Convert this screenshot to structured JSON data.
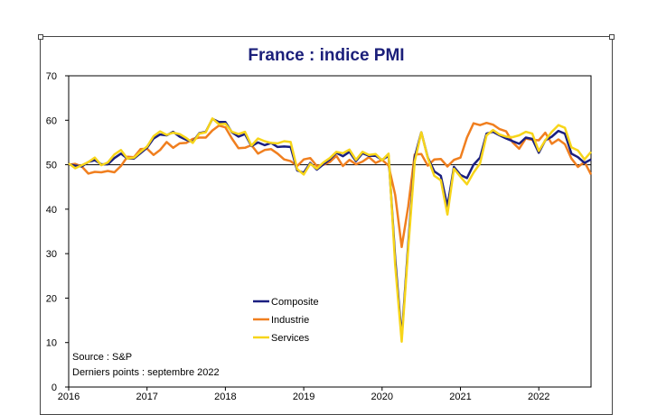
{
  "chart_data": {
    "type": "line",
    "title": "France : indice PMI",
    "xlabel": "",
    "ylabel": "",
    "ylim": [
      0,
      70
    ],
    "yticks": [
      0,
      10,
      20,
      30,
      40,
      50,
      60,
      70
    ],
    "xlim": [
      "2016-01",
      "2022-09"
    ],
    "xticks": [
      "2016",
      "2017",
      "2018",
      "2019",
      "2020",
      "2021",
      "2022"
    ],
    "reference_line": 50,
    "grid": false,
    "legend_position": "bottom-center",
    "source_lines": [
      "Source : S&P",
      "Derniers points : septembre 2022"
    ],
    "x": [
      "2016-01",
      "2016-02",
      "2016-03",
      "2016-04",
      "2016-05",
      "2016-06",
      "2016-07",
      "2016-08",
      "2016-09",
      "2016-10",
      "2016-11",
      "2016-12",
      "2017-01",
      "2017-02",
      "2017-03",
      "2017-04",
      "2017-05",
      "2017-06",
      "2017-07",
      "2017-08",
      "2017-09",
      "2017-10",
      "2017-11",
      "2017-12",
      "2018-01",
      "2018-02",
      "2018-03",
      "2018-04",
      "2018-05",
      "2018-06",
      "2018-07",
      "2018-08",
      "2018-09",
      "2018-10",
      "2018-11",
      "2018-12",
      "2019-01",
      "2019-02",
      "2019-03",
      "2019-04",
      "2019-05",
      "2019-06",
      "2019-07",
      "2019-08",
      "2019-09",
      "2019-10",
      "2019-11",
      "2019-12",
      "2020-01",
      "2020-02",
      "2020-03",
      "2020-04",
      "2020-05",
      "2020-06",
      "2020-07",
      "2020-08",
      "2020-09",
      "2020-10",
      "2020-11",
      "2020-12",
      "2021-01",
      "2021-02",
      "2021-03",
      "2021-04",
      "2021-05",
      "2021-06",
      "2021-07",
      "2021-08",
      "2021-09",
      "2021-10",
      "2021-11",
      "2021-12",
      "2022-01",
      "2022-02",
      "2022-03",
      "2022-04",
      "2022-05",
      "2022-06",
      "2022-07",
      "2022-08",
      "2022-09"
    ],
    "series": [
      {
        "name": "Composite",
        "color": "#1a1f80",
        "values": [
          50.1,
          49.8,
          49.6,
          50.6,
          51.0,
          50.1,
          50.1,
          51.5,
          52.5,
          51.4,
          51.4,
          52.6,
          53.8,
          55.9,
          56.8,
          56.6,
          57.4,
          56.3,
          55.6,
          55.1,
          57.1,
          57.4,
          60.3,
          59.6,
          59.6,
          57.3,
          56.3,
          56.9,
          54.2,
          55.0,
          54.4,
          54.9,
          54.0,
          54.1,
          54.0,
          48.7,
          48.2,
          50.4,
          48.9,
          50.1,
          51.2,
          52.7,
          51.9,
          52.9,
          50.8,
          52.6,
          52.0,
          52.0,
          51.1,
          52.0,
          28.9,
          11.1,
          32.1,
          51.7,
          57.3,
          51.6,
          48.5,
          47.5,
          40.6,
          49.5,
          47.7,
          47.0,
          50.0,
          51.6,
          57.0,
          57.4,
          56.6,
          55.9,
          55.3,
          54.7,
          56.1,
          55.8,
          52.7,
          55.5,
          56.3,
          57.6,
          57.0,
          52.5,
          51.7,
          50.4,
          51.2
        ]
      },
      {
        "name": "Industrie",
        "color": "#f07f1f",
        "values": [
          50.0,
          50.2,
          49.6,
          48.0,
          48.4,
          48.3,
          48.6,
          48.3,
          49.7,
          51.8,
          51.7,
          53.5,
          53.6,
          52.2,
          53.3,
          55.1,
          53.8,
          54.8,
          54.9,
          55.8,
          56.1,
          56.1,
          57.7,
          58.8,
          58.4,
          55.9,
          53.7,
          53.8,
          54.4,
          52.5,
          53.3,
          53.5,
          52.5,
          51.2,
          50.8,
          49.7,
          51.2,
          51.5,
          49.7,
          50.0,
          50.6,
          52.0,
          49.7,
          51.1,
          50.1,
          50.7,
          51.7,
          50.4,
          51.1,
          49.8,
          43.2,
          31.5,
          40.6,
          52.3,
          52.4,
          49.8,
          51.2,
          51.3,
          49.6,
          51.1,
          51.6,
          56.1,
          59.3,
          58.9,
          59.4,
          59.0,
          58.0,
          57.5,
          55.0,
          53.6,
          55.9,
          55.6,
          55.5,
          57.2,
          54.7,
          55.7,
          54.6,
          51.4,
          49.5,
          50.6,
          47.8
        ]
      },
      {
        "name": "Services",
        "color": "#f7d51a",
        "values": [
          50.3,
          49.2,
          49.9,
          50.6,
          51.6,
          49.9,
          50.5,
          52.3,
          53.3,
          51.4,
          51.6,
          52.9,
          54.1,
          56.4,
          57.5,
          56.7,
          57.2,
          56.9,
          56.0,
          54.9,
          57.0,
          57.3,
          60.4,
          59.1,
          59.2,
          57.4,
          56.9,
          57.4,
          54.3,
          55.9,
          55.3,
          54.9,
          54.8,
          55.3,
          55.1,
          49.0,
          47.8,
          50.2,
          49.1,
          50.5,
          51.5,
          52.9,
          52.6,
          53.4,
          51.1,
          52.9,
          52.2,
          52.4,
          51.0,
          52.5,
          27.4,
          10.2,
          31.1,
          50.7,
          57.3,
          51.5,
          47.5,
          46.5,
          38.8,
          49.1,
          47.3,
          45.6,
          48.2,
          50.3,
          56.6,
          57.8,
          56.8,
          56.3,
          56.2,
          56.6,
          57.4,
          57.0,
          53.1,
          55.5,
          57.4,
          58.9,
          58.3,
          53.9,
          53.2,
          51.2,
          52.9
        ]
      }
    ]
  }
}
